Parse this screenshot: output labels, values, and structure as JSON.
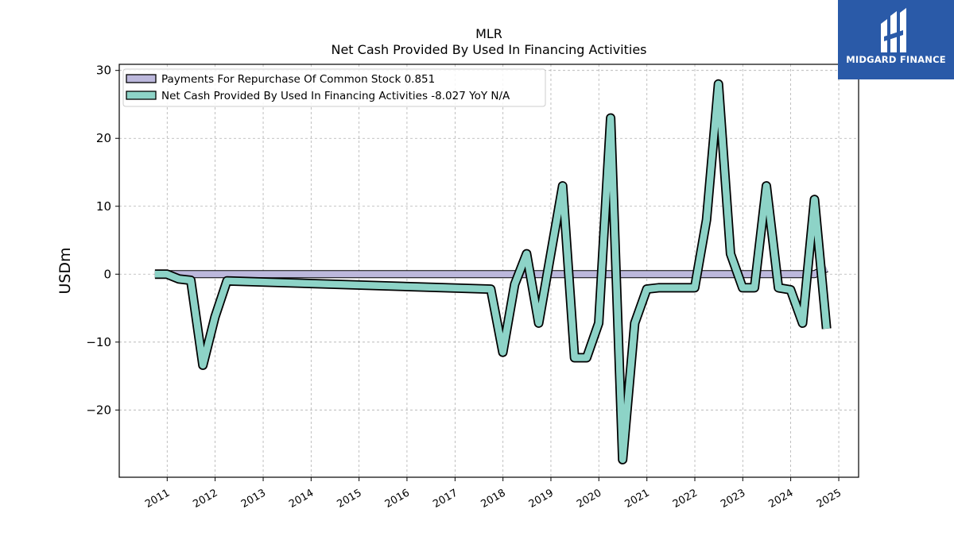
{
  "brand": {
    "name": "MIDGARD FINANCE",
    "colors": {
      "background": "#2a5aa8",
      "text": "#ffffff"
    },
    "icon": "midgard-logo-icon"
  },
  "chart_data": {
    "type": "line",
    "title": "MLR",
    "subtitle": "Net Cash Provided By Used In Financing Activities",
    "ylabel": "USDm",
    "xlabel": "",
    "ylim": [
      -30,
      30
    ],
    "xlim": [
      "2010-01-01",
      "2025-06-01"
    ],
    "yticks": [
      30,
      20,
      10,
      0,
      -10,
      -20
    ],
    "ytick_labels": [
      "30",
      "20",
      "10",
      "0",
      "−10",
      "−20"
    ],
    "xticks": [
      "2011",
      "2012",
      "2013",
      "2014",
      "2015",
      "2016",
      "2017",
      "2018",
      "2019",
      "2020",
      "2021",
      "2022",
      "2023",
      "2024",
      "2025"
    ],
    "grid": true,
    "legend_position": "top-left",
    "legend": [
      {
        "label": "Payments For Repurchase Of Common Stock  0.851",
        "color": "#bcb8dc"
      },
      {
        "label": "Net Cash Provided By Used In Financing Activities  -8.027 YoY N/A",
        "color": "#8dd3c7"
      }
    ],
    "series": [
      {
        "name": "Payments For Repurchase Of Common Stock",
        "color": "#bcb8dc",
        "x": [
          "2010-09-30",
          "2010-12-31",
          "2011-03-31",
          "2011-06-30",
          "2011-09-30",
          "2011-12-31",
          "2012-03-31",
          "2017-09-30",
          "2017-12-31",
          "2018-03-31",
          "2018-06-30",
          "2018-09-30",
          "2018-12-31",
          "2019-03-31",
          "2019-06-30",
          "2019-09-30",
          "2019-12-31",
          "2020-03-31",
          "2020-06-30",
          "2020-09-30",
          "2020-12-31",
          "2021-03-31",
          "2021-06-30",
          "2021-09-30",
          "2021-12-31",
          "2022-03-31",
          "2022-06-30",
          "2022-09-30",
          "2022-12-31",
          "2023-03-31",
          "2023-06-30",
          "2023-09-30",
          "2023-12-31",
          "2024-03-31",
          "2024-06-30",
          "2024-09-30"
        ],
        "values": [
          0,
          0,
          0,
          0,
          0,
          0,
          0,
          0,
          0,
          0,
          0,
          0,
          0,
          0,
          0,
          0,
          0,
          0,
          0,
          0,
          0,
          0,
          0,
          0,
          0,
          0,
          0,
          0,
          0,
          0,
          0,
          0,
          0,
          0,
          0,
          0.851
        ]
      },
      {
        "name": "Net Cash Provided By Used In Financing Activities",
        "color": "#8dd3c7",
        "x": [
          "2010-09-30",
          "2010-12-31",
          "2011-03-31",
          "2011-06-30",
          "2011-09-30",
          "2011-12-31",
          "2012-03-31",
          "2017-09-30",
          "2017-12-31",
          "2018-03-31",
          "2018-06-30",
          "2018-09-30",
          "2018-12-31",
          "2019-03-31",
          "2019-06-30",
          "2019-09-30",
          "2019-12-31",
          "2020-03-31",
          "2020-06-30",
          "2020-09-30",
          "2020-12-31",
          "2021-03-31",
          "2021-06-30",
          "2021-09-30",
          "2021-12-31",
          "2022-03-31",
          "2022-06-30",
          "2022-09-30",
          "2022-12-31",
          "2023-03-31",
          "2023-06-30",
          "2023-09-30",
          "2023-12-31",
          "2024-03-31",
          "2024-06-30",
          "2024-09-30"
        ],
        "values": [
          0,
          0,
          -0.7,
          -0.9,
          -13.4,
          -6.3,
          -1.0,
          -2.2,
          -11.5,
          -1.5,
          3.0,
          -7.2,
          3.0,
          13.0,
          -12.3,
          -12.3,
          -7.2,
          23.0,
          -27.3,
          -7.2,
          -2.2,
          -2.0,
          -2.0,
          -2.0,
          -2.0,
          8.0,
          28.0,
          3.0,
          -2.0,
          -2.0,
          13.0,
          -2.0,
          -2.3,
          -7.2,
          11.0,
          -8.027
        ]
      }
    ]
  }
}
